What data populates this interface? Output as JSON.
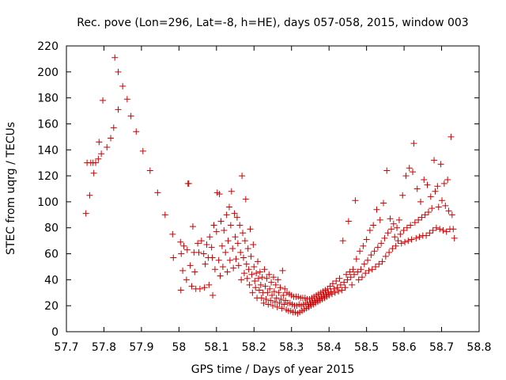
{
  "chart_data": {
    "type": "scatter",
    "title": "Rec. pove (Lon=296, Lat=-8, h=HE), days 057-058, 2015, window 003",
    "xlabel": "GPS time / Days of year 2015",
    "ylabel": "STEC from uqrg / TECUs",
    "xlim": [
      57.7,
      58.8
    ],
    "ylim": [
      0,
      220
    ],
    "xticks": [
      "57.7",
      "57.8",
      "57.9",
      "58",
      "58.1",
      "58.2",
      "58.3",
      "58.4",
      "58.5",
      "58.6",
      "58.7",
      "58.8"
    ],
    "yticks": [
      "0",
      "20",
      "40",
      "60",
      "80",
      "100",
      "120",
      "140",
      "160",
      "180",
      "200",
      "220"
    ],
    "marker": "plus",
    "color": "#cc0000",
    "grid": false,
    "legend": "none",
    "series": [
      {
        "points": [
          [
            57.752,
            91
          ],
          [
            57.755,
            130
          ],
          [
            57.762,
            105
          ],
          [
            57.765,
            130
          ],
          [
            57.771,
            130
          ],
          [
            57.773,
            122
          ],
          [
            57.778,
            130
          ],
          [
            57.785,
            133
          ],
          [
            57.787,
            146
          ],
          [
            57.793,
            137
          ],
          [
            57.797,
            178
          ],
          [
            57.808,
            142
          ],
          [
            57.818,
            149
          ],
          [
            57.826,
            157
          ],
          [
            57.829,
            211
          ],
          [
            57.838,
            171
          ],
          [
            57.838,
            200
          ],
          [
            57.85,
            189
          ],
          [
            57.862,
            179
          ],
          [
            57.872,
            166
          ],
          [
            57.886,
            154
          ],
          [
            57.904,
            139
          ],
          [
            57.923,
            124
          ],
          [
            57.943,
            107
          ],
          [
            57.963,
            90
          ],
          [
            57.983,
            75
          ],
          [
            57.985,
            57
          ],
          [
            58.004,
            69
          ],
          [
            58.005,
            32
          ],
          [
            58.006,
            60
          ],
          [
            58.01,
            47
          ],
          [
            58.013,
            66
          ],
          [
            58.02,
            40
          ],
          [
            58.022,
            63
          ],
          [
            58.024,
            114
          ],
          [
            58.026,
            114
          ],
          [
            58.03,
            51
          ],
          [
            58.034,
            35
          ],
          [
            58.037,
            81
          ],
          [
            58.04,
            61
          ],
          [
            58.042,
            46
          ],
          [
            58.045,
            33
          ],
          [
            58.05,
            68
          ],
          [
            58.053,
            61
          ],
          [
            58.056,
            33
          ],
          [
            58.06,
            70
          ],
          [
            58.066,
            60
          ],
          [
            58.068,
            34
          ],
          [
            58.07,
            52
          ],
          [
            58.074,
            67
          ],
          [
            58.078,
            57
          ],
          [
            58.08,
            36
          ],
          [
            58.082,
            73
          ],
          [
            58.087,
            65
          ],
          [
            58.089,
            57
          ],
          [
            58.09,
            28
          ],
          [
            58.093,
            82
          ],
          [
            58.096,
            48
          ],
          [
            58.1,
            77
          ],
          [
            58.102,
            107
          ],
          [
            58.106,
            55
          ],
          [
            58.108,
            106
          ],
          [
            58.11,
            43
          ],
          [
            58.112,
            85
          ],
          [
            58.115,
            66
          ],
          [
            58.117,
            50
          ],
          [
            58.12,
            78
          ],
          [
            58.124,
            61
          ],
          [
            58.127,
            90
          ],
          [
            58.129,
            46
          ],
          [
            58.131,
            70
          ],
          [
            58.134,
            96
          ],
          [
            58.136,
            55
          ],
          [
            58.138,
            82
          ],
          [
            58.14,
            108
          ],
          [
            58.143,
            64
          ],
          [
            58.145,
            49
          ],
          [
            58.148,
            91
          ],
          [
            58.15,
            73
          ],
          [
            58.152,
            56
          ],
          [
            58.155,
            88
          ],
          [
            58.157,
            68
          ],
          [
            58.159,
            51
          ],
          [
            58.162,
            82
          ],
          [
            58.164,
            61
          ],
          [
            58.166,
            40
          ],
          [
            58.168,
            120
          ],
          [
            58.17,
            76
          ],
          [
            58.172,
            57
          ],
          [
            58.174,
            45
          ],
          [
            58.176,
            70
          ],
          [
            58.178,
            102
          ],
          [
            58.18,
            52
          ],
          [
            58.182,
            41
          ],
          [
            58.184,
            64
          ],
          [
            58.186,
            48
          ],
          [
            58.188,
            36
          ],
          [
            58.19,
            79
          ],
          [
            58.192,
            58
          ],
          [
            58.194,
            44
          ],
          [
            58.196,
            30
          ],
          [
            58.198,
            67
          ],
          [
            58.2,
            50
          ],
          [
            58.202,
            39
          ],
          [
            58.204,
            34
          ],
          [
            58.206,
            45
          ],
          [
            58.208,
            26
          ],
          [
            58.21,
            54
          ],
          [
            58.212,
            41
          ],
          [
            58.214,
            32
          ],
          [
            58.216,
            46
          ],
          [
            58.218,
            36
          ],
          [
            58.22,
            26
          ],
          [
            58.222,
            42
          ],
          [
            58.224,
            30
          ],
          [
            58.226,
            22
          ],
          [
            58.228,
            48
          ],
          [
            58.23,
            35
          ],
          [
            58.232,
            25
          ],
          [
            58.234,
            41
          ],
          [
            58.236,
            30
          ],
          [
            58.238,
            21
          ],
          [
            58.24,
            44
          ],
          [
            58.242,
            33
          ],
          [
            58.244,
            24
          ],
          [
            58.246,
            38
          ],
          [
            58.248,
            28
          ],
          [
            58.25,
            20
          ],
          [
            58.252,
            42
          ],
          [
            58.254,
            31
          ],
          [
            58.256,
            23
          ],
          [
            58.258,
            36
          ],
          [
            58.26,
            26
          ],
          [
            58.262,
            19
          ],
          [
            58.264,
            40
          ],
          [
            58.266,
            30
          ],
          [
            58.268,
            22
          ],
          [
            58.27,
            34
          ],
          [
            58.272,
            25
          ],
          [
            58.274,
            18
          ],
          [
            58.276,
            47
          ],
          [
            58.278,
            28
          ],
          [
            58.28,
            21
          ],
          [
            58.282,
            33
          ],
          [
            58.284,
            24
          ],
          [
            58.286,
            17
          ],
          [
            58.288,
            30
          ],
          [
            58.29,
            22
          ],
          [
            58.292,
            16
          ],
          [
            58.294,
            29
          ],
          [
            58.296,
            22
          ],
          [
            58.298,
            16
          ],
          [
            58.3,
            28
          ],
          [
            58.302,
            21
          ],
          [
            58.304,
            15
          ],
          [
            58.306,
            27
          ],
          [
            58.308,
            20
          ],
          [
            58.31,
            15
          ],
          [
            58.312,
            27
          ],
          [
            58.314,
            20
          ],
          [
            58.316,
            14
          ],
          [
            58.318,
            27
          ],
          [
            58.32,
            21
          ],
          [
            58.322,
            15
          ],
          [
            58.324,
            26
          ],
          [
            58.326,
            20
          ],
          [
            58.328,
            16
          ],
          [
            58.33,
            26
          ],
          [
            58.332,
            21
          ],
          [
            58.334,
            17
          ],
          [
            58.336,
            26
          ],
          [
            58.338,
            22
          ],
          [
            58.34,
            18
          ],
          [
            58.342,
            25
          ],
          [
            58.344,
            21
          ],
          [
            58.346,
            19
          ],
          [
            58.348,
            25
          ],
          [
            58.35,
            22
          ],
          [
            58.352,
            20
          ],
          [
            58.354,
            26
          ],
          [
            58.356,
            23
          ],
          [
            58.358,
            21
          ],
          [
            58.36,
            27
          ],
          [
            58.362,
            24
          ],
          [
            58.364,
            22
          ],
          [
            58.366,
            28
          ],
          [
            58.368,
            25
          ],
          [
            58.37,
            23
          ],
          [
            58.372,
            29
          ],
          [
            58.374,
            26
          ],
          [
            58.376,
            24
          ],
          [
            58.378,
            30
          ],
          [
            58.38,
            27
          ],
          [
            58.382,
            25
          ],
          [
            58.384,
            31
          ],
          [
            58.386,
            28
          ],
          [
            58.388,
            26
          ],
          [
            58.39,
            32
          ],
          [
            58.392,
            29
          ],
          [
            58.394,
            27
          ],
          [
            58.396,
            33
          ],
          [
            58.398,
            30
          ],
          [
            58.4,
            28
          ],
          [
            58.403,
            35
          ],
          [
            58.405,
            31
          ],
          [
            58.408,
            29
          ],
          [
            58.41,
            37
          ],
          [
            58.413,
            33
          ],
          [
            58.416,
            30
          ],
          [
            58.419,
            39
          ],
          [
            58.422,
            34
          ],
          [
            58.425,
            31
          ],
          [
            58.428,
            41
          ],
          [
            58.431,
            36
          ],
          [
            58.434,
            32
          ],
          [
            58.437,
            70
          ],
          [
            58.44,
            38
          ],
          [
            58.443,
            34
          ],
          [
            58.446,
            44
          ],
          [
            58.449,
            40
          ],
          [
            58.452,
            85
          ],
          [
            58.455,
            46
          ],
          [
            58.458,
            42
          ],
          [
            58.461,
            36
          ],
          [
            58.464,
            48
          ],
          [
            58.467,
            44
          ],
          [
            58.47,
            101
          ],
          [
            58.473,
            56
          ],
          [
            58.476,
            46
          ],
          [
            58.479,
            40
          ],
          [
            58.482,
            62
          ],
          [
            58.485,
            48
          ],
          [
            58.488,
            42
          ],
          [
            58.491,
            66
          ],
          [
            58.494,
            52
          ],
          [
            58.497,
            45
          ],
          [
            58.5,
            71
          ],
          [
            58.503,
            55
          ],
          [
            58.506,
            47
          ],
          [
            58.509,
            78
          ],
          [
            58.512,
            59
          ],
          [
            58.515,
            48
          ],
          [
            58.518,
            82
          ],
          [
            58.521,
            62
          ],
          [
            58.524,
            50
          ],
          [
            58.527,
            94
          ],
          [
            58.53,
            65
          ],
          [
            58.533,
            52
          ],
          [
            58.536,
            86
          ],
          [
            58.539,
            68
          ],
          [
            58.542,
            54
          ],
          [
            58.545,
            99
          ],
          [
            58.548,
            72
          ],
          [
            58.551,
            58
          ],
          [
            58.554,
            124
          ],
          [
            58.557,
            76
          ],
          [
            58.56,
            61
          ],
          [
            58.563,
            87
          ],
          [
            58.566,
            79
          ],
          [
            58.569,
            64
          ],
          [
            58.572,
            83
          ],
          [
            58.575,
            73
          ],
          [
            58.578,
            66
          ],
          [
            58.581,
            80
          ],
          [
            58.584,
            70
          ],
          [
            58.587,
            86
          ],
          [
            58.59,
            75
          ],
          [
            58.593,
            68
          ],
          [
            58.596,
            105
          ],
          [
            58.599,
            78
          ],
          [
            58.602,
            69
          ],
          [
            58.605,
            120
          ],
          [
            58.608,
            80
          ],
          [
            58.611,
            70
          ],
          [
            58.614,
            126
          ],
          [
            58.617,
            82
          ],
          [
            58.62,
            71
          ],
          [
            58.623,
            123
          ],
          [
            58.626,
            145
          ],
          [
            58.629,
            84
          ],
          [
            58.632,
            72
          ],
          [
            58.635,
            110
          ],
          [
            58.638,
            86
          ],
          [
            58.641,
            73
          ],
          [
            58.644,
            100
          ],
          [
            58.647,
            88
          ],
          [
            58.65,
            74
          ],
          [
            58.653,
            117
          ],
          [
            58.656,
            90
          ],
          [
            58.659,
            74
          ],
          [
            58.662,
            113
          ],
          [
            58.665,
            92
          ],
          [
            58.668,
            76
          ],
          [
            58.671,
            104
          ],
          [
            58.674,
            95
          ],
          [
            58.677,
            78
          ],
          [
            58.68,
            132
          ],
          [
            58.683,
            108
          ],
          [
            58.686,
            80
          ],
          [
            58.689,
            112
          ],
          [
            58.692,
            96
          ],
          [
            58.695,
            79
          ],
          [
            58.698,
            129
          ],
          [
            58.701,
            101
          ],
          [
            58.704,
            78
          ],
          [
            58.707,
            114
          ],
          [
            58.71,
            97
          ],
          [
            58.713,
            77
          ],
          [
            58.716,
            117
          ],
          [
            58.719,
            93
          ],
          [
            58.722,
            79
          ],
          [
            58.725,
            150
          ],
          [
            58.728,
            90
          ],
          [
            58.731,
            79
          ],
          [
            58.734,
            72
          ]
        ]
      }
    ]
  }
}
